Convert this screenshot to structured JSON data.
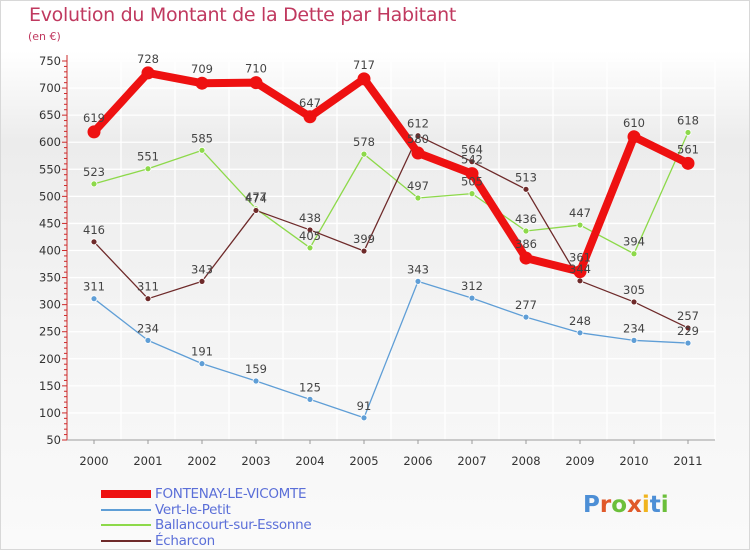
{
  "header": {
    "title": "Evolution du Montant de la Dette par Habitant",
    "unit": "(en €)"
  },
  "chart_data": {
    "type": "line",
    "title": "Evolution du Montant de la Dette par Habitant",
    "subtitle": "(en €)",
    "xlabel": "",
    "ylabel": "",
    "categories": [
      "2000",
      "2001",
      "2002",
      "2003",
      "2004",
      "2005",
      "2006",
      "2007",
      "2008",
      "2009",
      "2010",
      "2011"
    ],
    "ylim": [
      50,
      750
    ],
    "yticks": [
      50,
      100,
      150,
      200,
      250,
      300,
      350,
      400,
      450,
      500,
      550,
      600,
      650,
      700,
      750
    ],
    "grid": true,
    "legend_position": "bottom-left",
    "series": [
      {
        "name": "FONTENAY-LE-VICOMTE",
        "color": "#ee1111",
        "values": [
          619,
          728,
          709,
          710,
          647,
          717,
          580,
          542,
          386,
          361,
          610,
          561
        ]
      },
      {
        "name": "Vert-le-Petit",
        "color": "#5f9ed6",
        "values": [
          311,
          234,
          191,
          159,
          125,
          91,
          343,
          312,
          277,
          248,
          234,
          229
        ]
      },
      {
        "name": "Ballancourt-sur-Essonne",
        "color": "#8dd94a",
        "values": [
          523,
          551,
          585,
          477,
          405,
          578,
          497,
          505,
          436,
          447,
          394,
          618
        ]
      },
      {
        "name": "Écharcon",
        "color": "#6e2a2a",
        "values": [
          416,
          311,
          343,
          474,
          438,
          399,
          612,
          564,
          513,
          344,
          305,
          257
        ]
      }
    ]
  },
  "branding": {
    "logo_text": "Proxiti",
    "letter_colors": [
      "#4d8fd6",
      "#e0592a",
      "#6bbf3a",
      "#e0592a",
      "#f0b41e",
      "#4d8fd6",
      "#6bbf3a"
    ]
  }
}
